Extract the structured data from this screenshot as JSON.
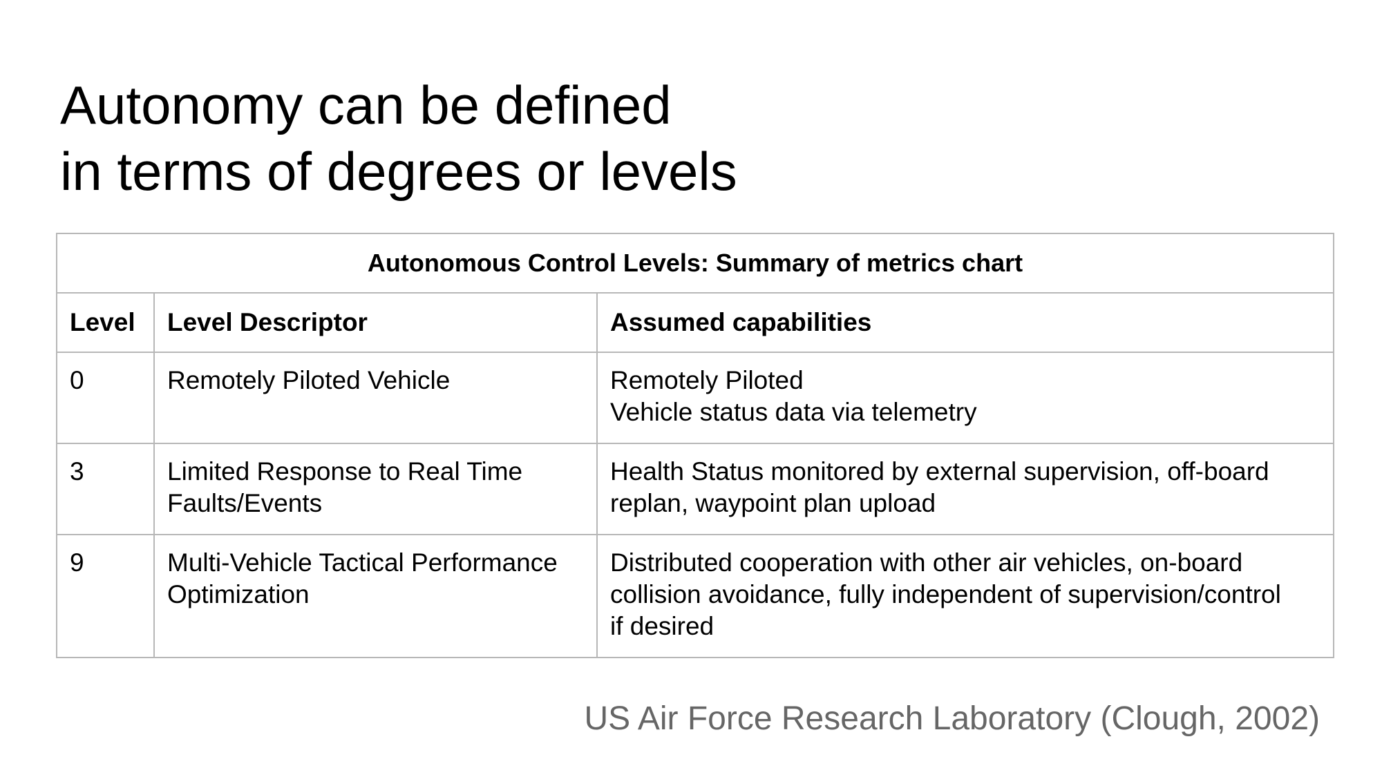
{
  "slide": {
    "title_lines": [
      "Autonomy can be defined",
      "in terms of degrees or levels"
    ],
    "table": {
      "caption": "Autonomous Control Levels: Summary of metrics chart",
      "headers": [
        "Level",
        "Level Descriptor",
        "Assumed capabilities"
      ],
      "rows": [
        {
          "level": "0",
          "descriptor": [
            "Remotely Piloted Vehicle"
          ],
          "capabilities": [
            "Remotely Piloted",
            "Vehicle status data via telemetry"
          ]
        },
        {
          "level": "3",
          "descriptor": [
            "Limited Response to Real Time",
            "Faults/Events"
          ],
          "capabilities": [
            "Health Status monitored by external supervision, off-board",
            "replan, waypoint plan upload"
          ]
        },
        {
          "level": "9",
          "descriptor": [
            "Multi-Vehicle Tactical Performance",
            "Optimization"
          ],
          "capabilities": [
            "Distributed cooperation with other air vehicles, on-board",
            "collision avoidance, fully independent of supervision/control",
            "if desired"
          ]
        }
      ]
    },
    "source": "US Air Force Research Laboratory (Clough, 2002)",
    "colors": {
      "text": "#000000",
      "border": "#b7b7b7",
      "source_text": "#666666",
      "background": "#ffffff"
    }
  }
}
